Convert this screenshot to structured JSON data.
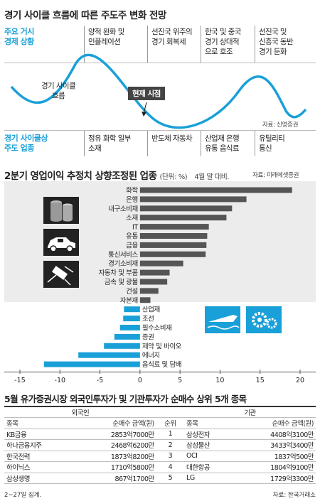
{
  "section1": {
    "title": "경기 사이클 흐름에 따른 주도주 변화 전망",
    "top_header": [
      "주요 거시",
      "경제 상황"
    ],
    "top_cells": [
      [
        "양적 완화 및",
        "인플레이션"
      ],
      [
        "선진국 위주의",
        "경기 회복세"
      ],
      [
        "한국 및 중국",
        "경기 상대적",
        "으로 호조"
      ],
      [
        "선진국 및",
        "신흥국 동반",
        "경기 둔화"
      ]
    ],
    "curve_label": [
      "경기 사이클",
      "흐름"
    ],
    "now_label": "현재 시점",
    "source": "자료: 신영증권",
    "bottom_header": [
      "경기 사이클상",
      "주도 업종"
    ],
    "bottom_cells": [
      [
        "정유 화학 일부",
        "소재"
      ],
      [
        "반도체 자동차"
      ],
      [
        "산업재 은행",
        "유통 음식료"
      ],
      [
        "유틸리티",
        "통신"
      ]
    ],
    "accent_color": "#1aa0d8"
  },
  "section2": {
    "title": "2분기 영업이익 추정치 상향조정된 업종",
    "unit": "(단위: %)",
    "note": "4월 말 대비.",
    "source": "자료: 미래에셋증권",
    "icons": [
      "oil-barrel-icon",
      "car-icon",
      "satellite-icon",
      "ship-icon",
      "gear-icon"
    ]
  },
  "chart_data": {
    "type": "bar",
    "orientation": "horizontal",
    "categories": [
      "화학",
      "은행",
      "내구소비재",
      "소재",
      "IT",
      "유통",
      "금융",
      "통신서비스",
      "경기소비재",
      "자동차 및 부품",
      "금속 및 광물",
      "건설",
      "자본재",
      "산업재",
      "조선",
      "필수소비재",
      "증권",
      "제약 및 바이오",
      "에너지",
      "음식료 및 담배"
    ],
    "values": [
      19.0,
      13.3,
      11.5,
      10.8,
      8.6,
      8.4,
      8.3,
      8.2,
      5.4,
      3.7,
      3.4,
      2.3,
      1.3,
      -2.0,
      -2.1,
      -2.5,
      -3.2,
      -4.5,
      -7.7,
      -12.0
    ],
    "xlim": [
      -15,
      20
    ],
    "xticks": [
      -15,
      -10,
      -5,
      0,
      5,
      10,
      15,
      20
    ],
    "positive_color": "#555555",
    "negative_color": "#1aa0d8"
  },
  "section3": {
    "title": "5월 유가증권시장 외국인투자가 및 기관투자가 순매수 상위 5개 종목",
    "group_foreign": "외국인",
    "group_inst": "기관",
    "col_item": "종목",
    "col_amount": "순매수 금액(원)",
    "col_rank": "순위",
    "rows": [
      {
        "f_name": "KB금융",
        "f_amt": "2853억7000만",
        "rank": "1",
        "i_name": "삼성전자",
        "i_amt": "4408억3100만"
      },
      {
        "f_name": "하나금융지주",
        "f_amt": "2468억6200만",
        "rank": "2",
        "i_name": "삼성물산",
        "i_amt": "3433억3400만"
      },
      {
        "f_name": "한국전력",
        "f_amt": "1873억8200만",
        "rank": "3",
        "i_name": "OCI",
        "i_amt": "1837억500만"
      },
      {
        "f_name": "하이닉스",
        "f_amt": "1710억5800만",
        "rank": "4",
        "i_name": "대한항공",
        "i_amt": "1804억9100만"
      },
      {
        "f_name": "삼성생명",
        "f_amt": "867억1700만",
        "rank": "5",
        "i_name": "LG",
        "i_amt": "1729억3300만"
      }
    ],
    "footnote_left": "2~27일 집계.",
    "footnote_right": "자료: 한국거래소"
  }
}
